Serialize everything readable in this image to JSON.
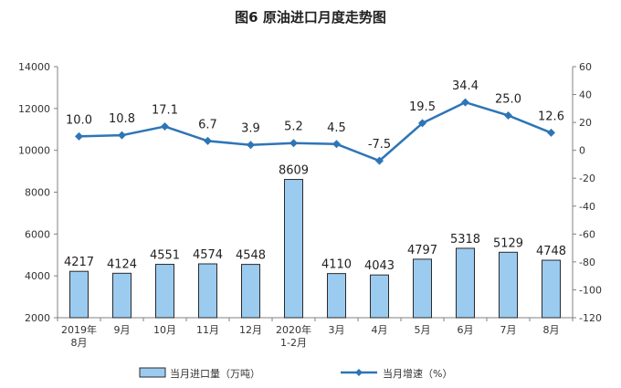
{
  "chart_data": {
    "type": "bar+line",
    "title": "图6  原油进口月度走势图",
    "categories": [
      "2019年\n8月",
      "9月",
      "10月",
      "11月",
      "12月",
      "2020年\n1-2月",
      "3月",
      "4月",
      "5月",
      "6月",
      "7月",
      "8月"
    ],
    "series": [
      {
        "name": "当月进口量（万吨）",
        "type": "bar",
        "axis": "left",
        "color": "#9ccbf0",
        "stroke": "#2a2a2a",
        "values": [
          4217,
          4124,
          4551,
          4574,
          4548,
          8609,
          4110,
          4043,
          4797,
          5318,
          5129,
          4748
        ],
        "labels": [
          "4217",
          "4124",
          "4551",
          "4574",
          "4548",
          "8609",
          "4110",
          "4043",
          "4797",
          "5318",
          "5129",
          "4748"
        ]
      },
      {
        "name": "当月增速（%）",
        "type": "line",
        "axis": "right",
        "color": "#2e75b6",
        "values": [
          10.0,
          10.8,
          17.1,
          6.7,
          3.9,
          5.2,
          4.5,
          -7.5,
          19.5,
          34.4,
          25.0,
          12.6
        ],
        "labels": [
          "10.0",
          "10.8",
          "17.1",
          "6.7",
          "3.9",
          "5.2",
          "4.5",
          "-7.5",
          "19.5",
          "34.4",
          "25.0",
          "12.6"
        ]
      }
    ],
    "yleft": {
      "lim": [
        2000,
        14000
      ],
      "ticks": [
        "2000",
        "4000",
        "6000",
        "8000",
        "10000",
        "12000",
        "14000"
      ]
    },
    "yright": {
      "lim": [
        -120,
        60
      ],
      "ticks": [
        "-120",
        "-100",
        "-80",
        "-60",
        "-40",
        "-20",
        "0",
        "20",
        "40",
        "60"
      ]
    },
    "grid": false,
    "legend": "bottom"
  }
}
